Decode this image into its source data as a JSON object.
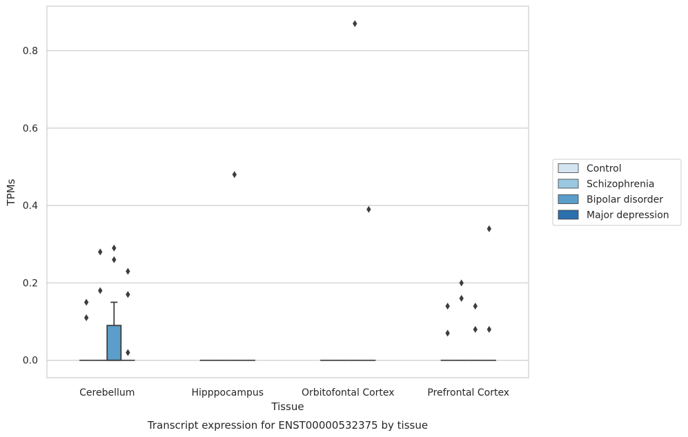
{
  "chart_data": {
    "type": "box",
    "title": "Transcript expression for ENST00000532375 by tissue",
    "xlabel": "Tissue",
    "ylabel": "TPMs",
    "ylim": [
      -0.045,
      0.915
    ],
    "yticks": [
      "0.0",
      "0.2",
      "0.4",
      "0.6",
      "0.8"
    ],
    "categories": [
      "Cerebellum",
      "Hipppocampus",
      "Orbitofontal Cortex",
      "Prefrontal Cortex"
    ],
    "grid": true,
    "legend_position": "right",
    "series": [
      {
        "name": "Control",
        "color": "#d4e5f2",
        "boxes": [
          {
            "q1": 0,
            "median": 0,
            "q3": 0,
            "whisker_low": 0,
            "whisker_high": 0,
            "outliers": [
              0.15,
              0.11
            ]
          },
          {
            "q1": 0,
            "median": 0,
            "q3": 0,
            "whisker_low": 0,
            "whisker_high": 0,
            "outliers": []
          },
          {
            "q1": 0,
            "median": 0,
            "q3": 0,
            "whisker_low": 0,
            "whisker_high": 0,
            "outliers": []
          },
          {
            "q1": 0,
            "median": 0,
            "q3": 0,
            "whisker_low": 0,
            "whisker_high": 0,
            "outliers": [
              0.14,
              0.07
            ]
          }
        ]
      },
      {
        "name": "Schizophrenia",
        "color": "#9ac8e0",
        "boxes": [
          {
            "q1": 0,
            "median": 0,
            "q3": 0,
            "whisker_low": 0,
            "whisker_high": 0,
            "outliers": [
              0.28,
              0.18
            ]
          },
          {
            "q1": 0,
            "median": 0,
            "q3": 0,
            "whisker_low": 0,
            "whisker_high": 0,
            "outliers": []
          },
          {
            "q1": 0,
            "median": 0,
            "q3": 0,
            "whisker_low": 0,
            "whisker_high": 0,
            "outliers": []
          },
          {
            "q1": 0,
            "median": 0,
            "q3": 0,
            "whisker_low": 0,
            "whisker_high": 0,
            "outliers": [
              0.2,
              0.16
            ]
          }
        ]
      },
      {
        "name": "Bipolar disorder",
        "color": "#5a9ec9",
        "boxes": [
          {
            "q1": 0,
            "median": 0,
            "q3": 0.09,
            "whisker_low": 0,
            "whisker_high": 0.15,
            "outliers": [
              0.29,
              0.26
            ]
          },
          {
            "q1": 0,
            "median": 0,
            "q3": 0,
            "whisker_low": 0,
            "whisker_high": 0,
            "outliers": [
              0.48
            ]
          },
          {
            "q1": 0,
            "median": 0,
            "q3": 0,
            "whisker_low": 0,
            "whisker_high": 0,
            "outliers": [
              0.87
            ]
          },
          {
            "q1": 0,
            "median": 0,
            "q3": 0,
            "whisker_low": 0,
            "whisker_high": 0,
            "outliers": [
              0.14,
              0.08
            ]
          }
        ]
      },
      {
        "name": "Major depression",
        "color": "#2c6fad",
        "boxes": [
          {
            "q1": 0,
            "median": 0,
            "q3": 0,
            "whisker_low": 0,
            "whisker_high": 0,
            "outliers": [
              0.23,
              0.17,
              0.02
            ]
          },
          {
            "q1": 0,
            "median": 0,
            "q3": 0,
            "whisker_low": 0,
            "whisker_high": 0,
            "outliers": []
          },
          {
            "q1": 0,
            "median": 0,
            "q3": 0,
            "whisker_low": 0,
            "whisker_high": 0,
            "outliers": [
              0.39
            ]
          },
          {
            "q1": 0,
            "median": 0,
            "q3": 0,
            "whisker_low": 0,
            "whisker_high": 0,
            "outliers": [
              0.34,
              0.08
            ]
          }
        ]
      }
    ]
  }
}
